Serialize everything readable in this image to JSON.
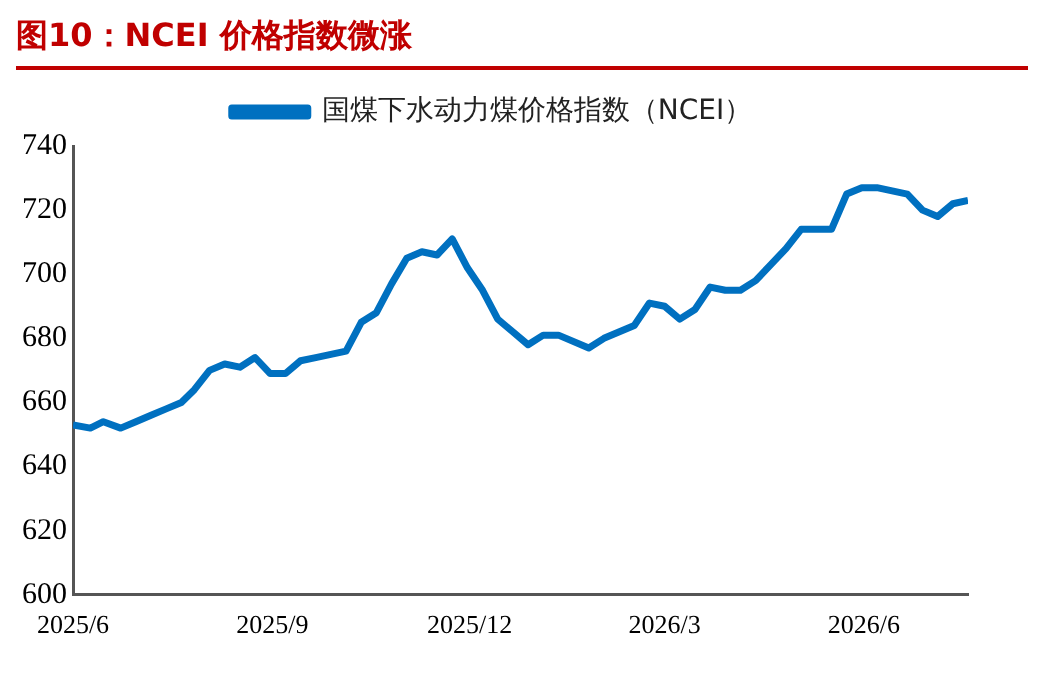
{
  "chart_data": {
    "type": "line",
    "title": "图10：NCEI 价格指数微涨",
    "legend": "top",
    "xlim": [
      "2025-06-01",
      "2026-07-19"
    ],
    "xticks": [
      {
        "value": "2025-06-01",
        "label": "2025/6"
      },
      {
        "value": "2025-09-01",
        "label": "2025/9"
      },
      {
        "value": "2025-12-01",
        "label": "2025/12"
      },
      {
        "value": "2026-03-01",
        "label": "2026/3"
      },
      {
        "value": "2026-06-01",
        "label": "2026/6"
      }
    ],
    "ylim": [
      600,
      740
    ],
    "yticks": [
      600,
      620,
      640,
      660,
      680,
      700,
      720,
      740
    ],
    "grid": false,
    "marker": "none",
    "line_style": "solid",
    "series": [
      {
        "name": "国煤下水动力煤价格指数（NCEI）",
        "color": "#0070c0",
        "x": [
          "2025-06-01",
          "2025-06-09",
          "2025-06-15",
          "2025-06-23",
          "2025-06-30",
          "2025-07-07",
          "2025-07-14",
          "2025-07-21",
          "2025-07-27",
          "2025-08-03",
          "2025-08-10",
          "2025-08-17",
          "2025-08-24",
          "2025-08-31",
          "2025-09-07",
          "2025-09-14",
          "2025-09-21",
          "2025-09-28",
          "2025-10-05",
          "2025-10-12",
          "2025-10-19",
          "2025-10-26",
          "2025-11-02",
          "2025-11-09",
          "2025-11-16",
          "2025-11-23",
          "2025-11-30",
          "2025-12-07",
          "2025-12-14",
          "2025-12-28",
          "2026-01-04",
          "2026-01-11",
          "2026-01-25",
          "2026-02-01",
          "2026-02-15",
          "2026-02-22",
          "2026-03-01",
          "2026-03-08",
          "2026-03-15",
          "2026-03-22",
          "2026-03-29",
          "2026-04-05",
          "2026-04-12",
          "2026-04-19",
          "2026-04-26",
          "2026-05-03",
          "2026-05-10",
          "2026-05-17",
          "2026-05-24",
          "2026-05-31",
          "2026-06-07",
          "2026-06-14",
          "2026-06-21",
          "2026-06-28",
          "2026-07-05",
          "2026-07-12",
          "2026-07-19"
        ],
        "values": [
          653,
          652,
          654,
          652,
          654,
          656,
          658,
          660,
          664,
          670,
          672,
          671,
          674,
          669,
          669,
          673,
          674,
          675,
          676,
          685,
          688,
          697,
          705,
          707,
          706,
          711,
          702,
          695,
          686,
          678,
          681,
          681,
          677,
          680,
          684,
          691,
          690,
          686,
          689,
          696,
          695,
          695,
          698,
          703,
          708,
          714,
          714,
          714,
          725,
          727,
          727,
          726,
          725,
          720,
          718,
          722,
          723
        ]
      }
    ]
  }
}
